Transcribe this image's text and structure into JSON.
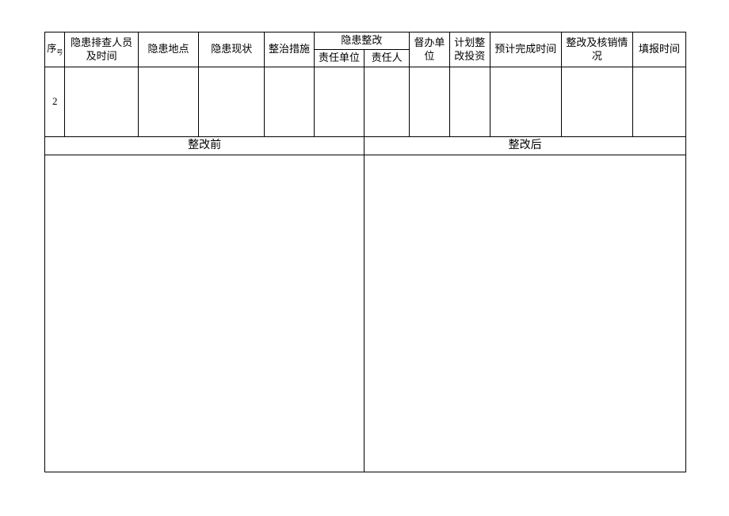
{
  "table": {
    "headers": {
      "seq_main": "序",
      "seq_sub": "号",
      "personnel_time": "隐患排查人员及时间",
      "location": "隐患地点",
      "status": "隐患现状",
      "measure": "整治措施",
      "rectify_group": "隐患整改",
      "resp_unit": "责任单位",
      "resp_person": "责任人",
      "supervise_unit": "督办单位",
      "plan_invest": "计划整改投资",
      "est_time": "预计完成时间",
      "check_status": "整改及核销情况",
      "fill_time": "填报时间"
    },
    "rows": [
      {
        "seq": "2",
        "personnel_time": "",
        "location": "",
        "status": "",
        "measure": "",
        "resp_unit": "",
        "resp_person": "",
        "supervise_unit": "",
        "plan_invest": "",
        "est_time": "",
        "check_status": "",
        "fill_time": ""
      }
    ],
    "sections": {
      "before": "整改前",
      "after": "整改后"
    }
  },
  "styling": {
    "border_color": "#000000",
    "background_color": "#ffffff",
    "header_fontsize": 13,
    "section_fontsize": 14,
    "font_family": "SimSun"
  }
}
